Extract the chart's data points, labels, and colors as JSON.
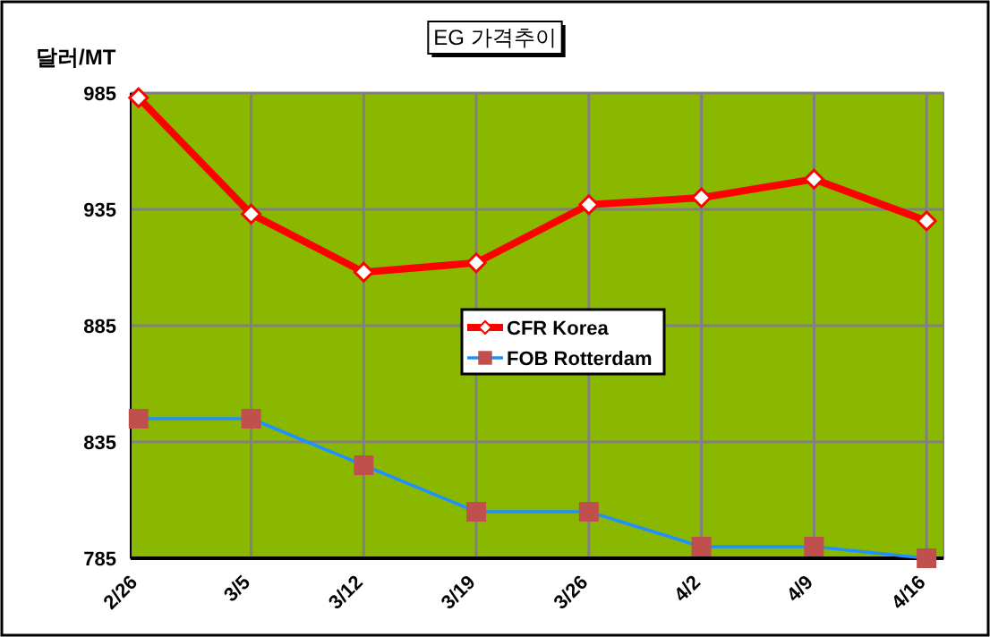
{
  "chart_data": {
    "type": "line",
    "title": "EG 가격추이",
    "ylabel": "달러/MT",
    "categories": [
      "2/26",
      "3/5",
      "3/12",
      "3/19",
      "3/26",
      "4/2",
      "4/9",
      "4/16"
    ],
    "series": [
      {
        "name": "CFR Korea",
        "color": "#ff0000",
        "marker": "diamond",
        "values": [
          983,
          933,
          908,
          912,
          937,
          940,
          948,
          930
        ]
      },
      {
        "name": "FOB Rotterdam",
        "color": "#1e90ff",
        "marker": "square",
        "values": [
          845,
          845,
          825,
          805,
          805,
          790,
          790,
          785
        ]
      }
    ],
    "ylim": [
      785,
      985
    ],
    "yticks": [
      785,
      835,
      885,
      935,
      985
    ],
    "grid": true,
    "legend": "center"
  }
}
